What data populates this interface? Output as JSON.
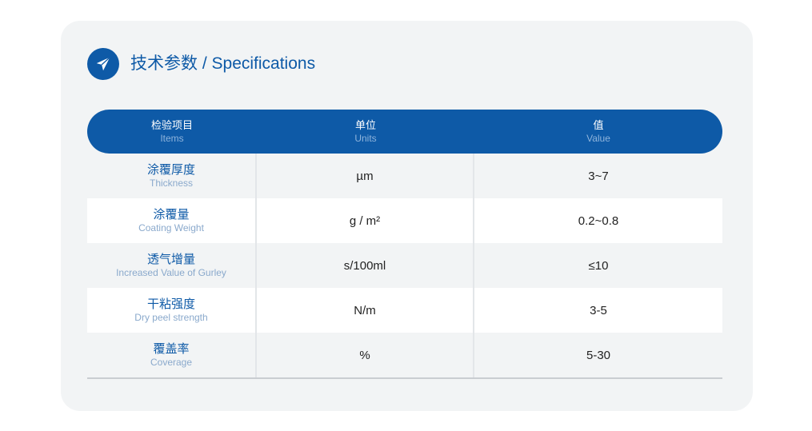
{
  "header": {
    "title": "技术参数 / Specifications",
    "icon": "paper-plane-icon"
  },
  "colors": {
    "accent": "#0e5aa7",
    "card_bg": "#f2f4f5"
  },
  "table": {
    "columns": [
      {
        "zh": "检验项目",
        "en": "Items"
      },
      {
        "zh": "单位",
        "en": "Units"
      },
      {
        "zh": "值",
        "en": "Value"
      }
    ],
    "rows": [
      {
        "zh": "涂覆厚度",
        "en": "Thickness",
        "unit": "µm",
        "value": "3~7"
      },
      {
        "zh": "涂覆量",
        "en": "Coating Weight",
        "unit": "g / m²",
        "value": "0.2~0.8"
      },
      {
        "zh": "透气增量",
        "en": "Increased Value of Gurley",
        "unit": "s/100ml",
        "value": "≤10"
      },
      {
        "zh": "干粘强度",
        "en": "Dry peel strength",
        "unit": "N/m",
        "value": "3-5"
      },
      {
        "zh": "覆盖率",
        "en": "Coverage",
        "unit": "%",
        "value": "5-30"
      }
    ]
  }
}
